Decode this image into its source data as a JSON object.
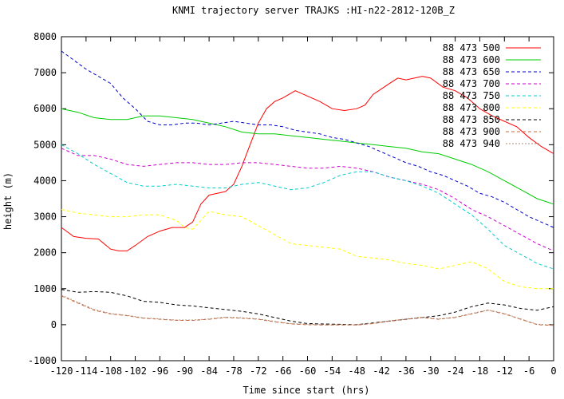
{
  "chart_data": {
    "type": "line",
    "title": "KNMI trajectory server TRAJKS :HI-n22-2812-120B_Z",
    "xlabel": "Time since start (hrs)",
    "ylabel": "height (m)",
    "xlim": [
      -120,
      0
    ],
    "ylim": [
      -1000,
      8000
    ],
    "xticks": [
      -120,
      -114,
      -108,
      -102,
      -96,
      -90,
      -84,
      -78,
      -72,
      -66,
      -60,
      -54,
      -48,
      -42,
      -36,
      -30,
      -24,
      -18,
      -12,
      -6,
      0
    ],
    "yticks": [
      -1000,
      0,
      1000,
      2000,
      3000,
      4000,
      5000,
      6000,
      7000,
      8000
    ],
    "grid": false,
    "legend_position": "top-right",
    "series": [
      {
        "name": "88 473 500",
        "color": "#ff0000",
        "dash": "solid",
        "x": [
          -120,
          -117,
          -114,
          -111,
          -108,
          -106,
          -104,
          -102,
          -99,
          -96,
          -93,
          -90,
          -88,
          -86,
          -84,
          -82,
          -80,
          -78,
          -76,
          -74,
          -72,
          -70,
          -68,
          -66,
          -63,
          -60,
          -57,
          -54,
          -51,
          -48,
          -46,
          -44,
          -42,
          -40,
          -38,
          -36,
          -34,
          -32,
          -30,
          -27,
          -24,
          -21,
          -18,
          -15,
          -12,
          -9,
          -6,
          -3,
          0
        ],
        "y": [
          2700,
          2450,
          2400,
          2380,
          2100,
          2050,
          2050,
          2200,
          2450,
          2600,
          2700,
          2700,
          2850,
          3350,
          3600,
          3650,
          3700,
          3900,
          4400,
          5000,
          5600,
          6000,
          6200,
          6300,
          6500,
          6350,
          6200,
          6000,
          5950,
          6000,
          6100,
          6400,
          6550,
          6700,
          6850,
          6800,
          6850,
          6900,
          6850,
          6600,
          6500,
          6300,
          6000,
          5800,
          5650,
          5500,
          5200,
          4950,
          4750
        ]
      },
      {
        "name": "88 473 600",
        "color": "#00cc00",
        "dash": "solid",
        "x": [
          -120,
          -116,
          -112,
          -108,
          -104,
          -100,
          -96,
          -92,
          -88,
          -84,
          -80,
          -76,
          -72,
          -68,
          -64,
          -60,
          -56,
          -52,
          -48,
          -44,
          -40,
          -36,
          -32,
          -28,
          -24,
          -20,
          -16,
          -12,
          -8,
          -4,
          0
        ],
        "y": [
          6000,
          5900,
          5750,
          5700,
          5700,
          5800,
          5800,
          5750,
          5700,
          5600,
          5500,
          5350,
          5300,
          5300,
          5250,
          5200,
          5150,
          5100,
          5050,
          5000,
          4950,
          4900,
          4800,
          4750,
          4600,
          4450,
          4250,
          4000,
          3750,
          3500,
          3350
        ]
      },
      {
        "name": "88 473 650",
        "color": "#0000cc",
        "dash": "4,3",
        "x": [
          -120,
          -117,
          -114,
          -111,
          -108,
          -105,
          -102,
          -99,
          -96,
          -93,
          -90,
          -87,
          -84,
          -81,
          -78,
          -75,
          -72,
          -69,
          -66,
          -63,
          -60,
          -57,
          -54,
          -51,
          -48,
          -45,
          -42,
          -39,
          -36,
          -33,
          -30,
          -27,
          -24,
          -21,
          -18,
          -15,
          -12,
          -9,
          -6,
          -3,
          0
        ],
        "y": [
          7600,
          7350,
          7100,
          6900,
          6700,
          6300,
          6000,
          5650,
          5550,
          5550,
          5600,
          5600,
          5550,
          5600,
          5650,
          5600,
          5550,
          5550,
          5500,
          5400,
          5350,
          5300,
          5200,
          5150,
          5050,
          4950,
          4800,
          4650,
          4500,
          4400,
          4250,
          4150,
          4000,
          3850,
          3650,
          3550,
          3400,
          3200,
          3000,
          2850,
          2700
        ]
      },
      {
        "name": "88 473 700",
        "color": "#cc00cc",
        "dash": "4,3",
        "x": [
          -120,
          -116,
          -112,
          -108,
          -104,
          -100,
          -96,
          -92,
          -88,
          -84,
          -80,
          -76,
          -72,
          -68,
          -64,
          -60,
          -56,
          -52,
          -48,
          -44,
          -40,
          -36,
          -32,
          -28,
          -24,
          -20,
          -16,
          -12,
          -8,
          -4,
          0
        ],
        "y": [
          4900,
          4700,
          4700,
          4600,
          4450,
          4400,
          4450,
          4500,
          4500,
          4450,
          4450,
          4500,
          4500,
          4450,
          4400,
          4350,
          4350,
          4400,
          4350,
          4250,
          4100,
          4000,
          3900,
          3750,
          3500,
          3200,
          3000,
          2750,
          2500,
          2250,
          2050
        ]
      },
      {
        "name": "88 473 750",
        "color": "#00cccc",
        "dash": "4,3",
        "x": [
          -120,
          -116,
          -112,
          -108,
          -104,
          -100,
          -96,
          -92,
          -88,
          -84,
          -80,
          -76,
          -72,
          -68,
          -64,
          -60,
          -56,
          -52,
          -48,
          -44,
          -40,
          -36,
          -32,
          -28,
          -24,
          -20,
          -16,
          -12,
          -8,
          -4,
          0
        ],
        "y": [
          5000,
          4750,
          4450,
          4200,
          3950,
          3850,
          3850,
          3900,
          3850,
          3800,
          3800,
          3900,
          3950,
          3850,
          3750,
          3800,
          3950,
          4150,
          4250,
          4250,
          4100,
          4000,
          3850,
          3650,
          3350,
          3050,
          2650,
          2200,
          1950,
          1700,
          1550
        ]
      },
      {
        "name": "88 473 800",
        "color": "#ffff00",
        "dash": "4,3",
        "x": [
          -120,
          -116,
          -112,
          -108,
          -104,
          -100,
          -96,
          -92,
          -90,
          -88,
          -86,
          -84,
          -82,
          -80,
          -76,
          -72,
          -68,
          -64,
          -60,
          -56,
          -52,
          -48,
          -44,
          -40,
          -36,
          -32,
          -28,
          -24,
          -20,
          -16,
          -12,
          -8,
          -4,
          0
        ],
        "y": [
          3200,
          3100,
          3050,
          3000,
          3000,
          3050,
          3050,
          2900,
          2700,
          2650,
          2900,
          3150,
          3100,
          3050,
          3000,
          2750,
          2500,
          2250,
          2200,
          2150,
          2100,
          1900,
          1850,
          1800,
          1700,
          1650,
          1550,
          1650,
          1750,
          1550,
          1200,
          1050,
          1000,
          1000
        ]
      },
      {
        "name": "88 473 850",
        "color": "#000000",
        "dash": "4,3",
        "x": [
          -120,
          -116,
          -112,
          -108,
          -104,
          -100,
          -96,
          -92,
          -88,
          -84,
          -80,
          -76,
          -72,
          -68,
          -64,
          -60,
          -56,
          -52,
          -48,
          -44,
          -40,
          -36,
          -32,
          -28,
          -24,
          -20,
          -16,
          -12,
          -8,
          -4,
          0
        ],
        "y": [
          980,
          900,
          920,
          900,
          800,
          650,
          620,
          550,
          520,
          470,
          420,
          370,
          300,
          200,
          100,
          30,
          20,
          10,
          0,
          50,
          100,
          150,
          200,
          250,
          350,
          500,
          600,
          550,
          450,
          400,
          500
        ]
      },
      {
        "name": "88 473 900",
        "color": "#cc6633",
        "dash": "4,3",
        "x": [
          -120,
          -116,
          -112,
          -108,
          -104,
          -100,
          -96,
          -92,
          -88,
          -84,
          -80,
          -76,
          -72,
          -68,
          -64,
          -60,
          -56,
          -52,
          -48,
          -44,
          -40,
          -36,
          -32,
          -28,
          -24,
          -20,
          -16,
          -12,
          -8,
          -4,
          0
        ],
        "y": [
          800,
          600,
          400,
          300,
          250,
          180,
          150,
          120,
          120,
          150,
          200,
          180,
          150,
          80,
          20,
          0,
          -10,
          -10,
          -10,
          30,
          100,
          150,
          200,
          150,
          200,
          300,
          400,
          300,
          150,
          0,
          -20
        ]
      },
      {
        "name": "88 473 940",
        "color": "#aa8877",
        "dash": "2,2",
        "x": [
          -120,
          -116,
          -112,
          -108,
          -104,
          -100,
          -96,
          -92,
          -88,
          -84,
          -80,
          -76,
          -72,
          -68,
          -64,
          -60,
          -56,
          -52,
          -48,
          -44,
          -40,
          -36,
          -32,
          -28,
          -24,
          -20,
          -16,
          -12,
          -8,
          -4,
          0
        ],
        "y": [
          820,
          620,
          420,
          310,
          260,
          190,
          160,
          130,
          130,
          160,
          210,
          190,
          160,
          90,
          30,
          10,
          0,
          0,
          0,
          40,
          110,
          160,
          210,
          160,
          210,
          310,
          410,
          310,
          160,
          10,
          -10
        ]
      }
    ]
  }
}
